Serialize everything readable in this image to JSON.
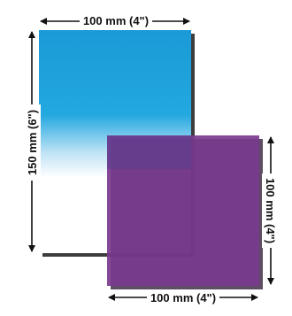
{
  "diagram": {
    "graduated_filter": {
      "gradient_colors": {
        "top": "#1a9ad6",
        "mid": "#23a8e0",
        "fade": "#bfe3f5",
        "bottom": "#ffffff"
      },
      "width_label": "100 mm (4\")",
      "height_label": "150 mm (6\")"
    },
    "solid_filter": {
      "fill_color": "#7a3a8e",
      "overlap_color": "#5a3e8f",
      "width_label": "100 mm (4\")",
      "height_label": "100 mm (4\")"
    }
  }
}
